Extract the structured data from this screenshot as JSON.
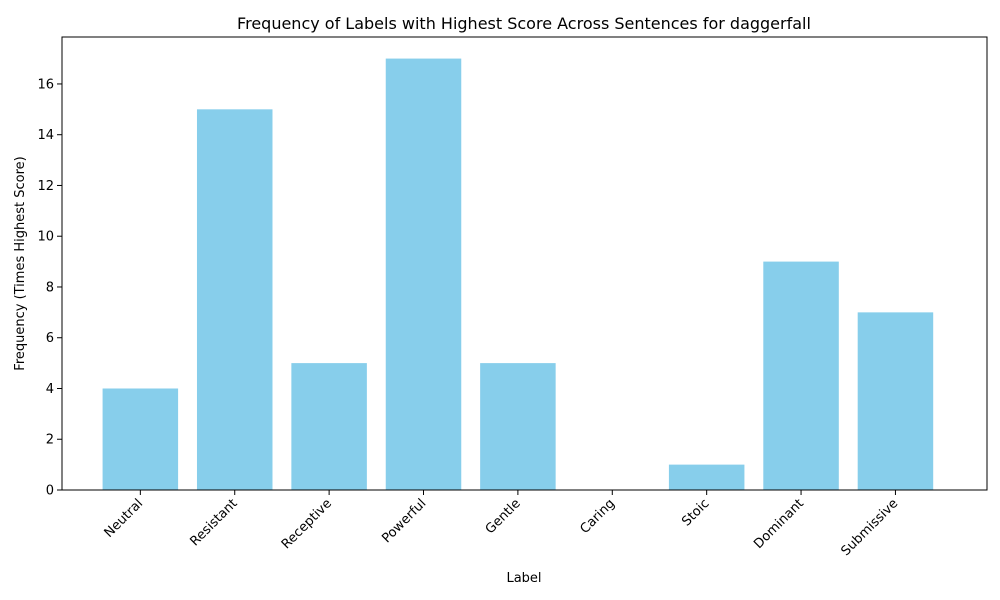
{
  "chart_data": {
    "type": "bar",
    "title": "Frequency of Labels with Highest Score Across Sentences for daggerfall",
    "xlabel": "Label",
    "ylabel": "Frequency (Times Highest Score)",
    "categories": [
      "Neutral",
      "Resistant",
      "Receptive",
      "Powerful",
      "Gentle",
      "Caring",
      "Stoic",
      "Dominant",
      "Submissive"
    ],
    "values": [
      4,
      15,
      5,
      17,
      5,
      0,
      1,
      9,
      7
    ],
    "yticks": [
      0,
      2,
      4,
      6,
      8,
      10,
      12,
      14,
      16
    ],
    "ylim": [
      0,
      17.85
    ],
    "grid": false,
    "bar_color": "#87ceeb"
  }
}
